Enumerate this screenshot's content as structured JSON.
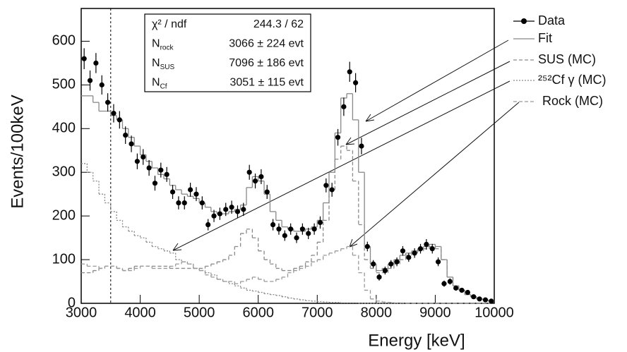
{
  "chart_data": {
    "type": "histogram",
    "x_label": "Energy [keV]",
    "y_label": "Events/100keV",
    "xlim": [
      3000,
      10000
    ],
    "ylim": [
      0,
      675
    ],
    "xticks": [
      3000,
      4000,
      5000,
      6000,
      7000,
      8000,
      9000,
      10000
    ],
    "yticks": [
      0,
      100,
      200,
      300,
      400,
      500,
      600
    ],
    "threshold": 3500,
    "bins": [
      3000,
      3100,
      3200,
      3300,
      3400,
      3500,
      3600,
      3700,
      3800,
      3900,
      4000,
      4100,
      4200,
      4300,
      4400,
      4500,
      4600,
      4700,
      4800,
      4900,
      5000,
      5100,
      5200,
      5300,
      5400,
      5500,
      5600,
      5700,
      5800,
      5900,
      6000,
      6100,
      6200,
      6300,
      6400,
      6500,
      6600,
      6700,
      6800,
      6900,
      7000,
      7100,
      7200,
      7300,
      7400,
      7500,
      7600,
      7700,
      7800,
      7900,
      8000,
      8100,
      8200,
      8300,
      8400,
      8500,
      8600,
      8700,
      8800,
      8900,
      9000,
      9100,
      9200,
      9300,
      9400,
      9500,
      9600,
      9700,
      9800,
      9900,
      10000
    ],
    "stats": [
      {
        "label": "χ² / ndf",
        "value": "244.3 / 62"
      },
      {
        "label": "N",
        "sub": "rock",
        "value": "3066 ± 224 evt"
      },
      {
        "label": "N",
        "sub": "SUS",
        "value": "7096 ± 186 evt"
      },
      {
        "label": "N",
        "sub": "Cf",
        "value": "3051 ± 115 evt"
      }
    ],
    "series": [
      {
        "name": "Data",
        "style": "points",
        "color": "#000000",
        "values": [
          560,
          510,
          550,
          500,
          460,
          435,
          420,
          385,
          365,
          325,
          335,
          310,
          275,
          305,
          295,
          255,
          230,
          230,
          260,
          250,
          230,
          180,
          200,
          205,
          215,
          220,
          210,
          215,
          300,
          280,
          290,
          255,
          180,
          170,
          155,
          170,
          150,
          170,
          160,
          170,
          185,
          270,
          260,
          380,
          450,
          530,
          505,
          360,
          130,
          90,
          60,
          75,
          90,
          95,
          120,
          105,
          115,
          125,
          135,
          125,
          95,
          45,
          50,
          35,
          30,
          25,
          15,
          10,
          8,
          5
        ],
        "errors": [
          24,
          23,
          23,
          22,
          21,
          21,
          20,
          20,
          19,
          18,
          18,
          18,
          17,
          17,
          17,
          16,
          15,
          15,
          16,
          16,
          15,
          13,
          14,
          14,
          15,
          15,
          14,
          15,
          17,
          17,
          17,
          16,
          13,
          13,
          12,
          13,
          12,
          13,
          13,
          13,
          14,
          16,
          16,
          19,
          21,
          23,
          22,
          19,
          11,
          9,
          8,
          9,
          9,
          10,
          11,
          10,
          11,
          11,
          12,
          11,
          10,
          7,
          7,
          6,
          5,
          5,
          4,
          3,
          3,
          2
        ]
      },
      {
        "name": "Fit",
        "style": "solid",
        "color": "#888888",
        "values": [
          475,
          475,
          460,
          440,
          440,
          430,
          420,
          400,
          380,
          360,
          340,
          325,
          310,
          295,
          285,
          270,
          260,
          250,
          245,
          240,
          230,
          220,
          210,
          205,
          205,
          210,
          215,
          225,
          265,
          290,
          280,
          250,
          210,
          190,
          175,
          170,
          165,
          165,
          170,
          175,
          190,
          230,
          300,
          390,
          470,
          480,
          420,
          300,
          130,
          90,
          75,
          80,
          90,
          100,
          110,
          115,
          120,
          125,
          130,
          135,
          130,
          100,
          60,
          40,
          30,
          20,
          15,
          10,
          8,
          5
        ]
      },
      {
        "name": "SUS (MC)",
        "style": "dashed",
        "color": "#8a8a8a",
        "values": [
          70,
          70,
          75,
          80,
          85,
          85,
          80,
          75,
          80,
          85,
          85,
          85,
          85,
          85,
          85,
          80,
          80,
          80,
          80,
          80,
          80,
          85,
          90,
          95,
          100,
          110,
          130,
          160,
          170,
          150,
          120,
          100,
          90,
          80,
          75,
          75,
          80,
          85,
          95,
          110,
          140,
          190,
          260,
          330,
          360,
          350,
          280,
          180,
          100,
          80,
          70,
          70,
          80,
          90,
          100,
          110,
          115,
          120,
          125,
          130,
          125,
          100,
          60,
          40,
          30,
          20,
          15,
          10,
          8,
          5
        ]
      },
      {
        "name": "²⁵²Cf γ (MC)",
        "style": "dotted",
        "color": "#8a8a8a",
        "values": [
          320,
          300,
          280,
          250,
          230,
          210,
          190,
          175,
          165,
          155,
          150,
          140,
          130,
          125,
          120,
          115,
          100,
          95,
          90,
          80,
          75,
          70,
          65,
          55,
          50,
          45,
          40,
          35,
          30,
          28,
          25,
          22,
          20,
          18,
          15,
          12,
          10,
          8,
          6,
          5,
          4,
          3,
          2,
          2,
          1,
          1,
          1,
          0,
          0,
          0,
          0,
          0,
          0,
          0,
          0,
          0,
          0,
          0,
          0,
          0,
          0,
          0,
          0,
          0,
          0,
          0,
          0,
          0,
          0,
          0
        ]
      },
      {
        "name": "Rock (MC)",
        "style": "dashed",
        "color": "#999999",
        "values": [
          90,
          85,
          85,
          80,
          85,
          85,
          80,
          75,
          75,
          80,
          85,
          85,
          80,
          80,
          80,
          85,
          90,
          95,
          90,
          80,
          75,
          65,
          60,
          55,
          50,
          50,
          45,
          50,
          55,
          60,
          55,
          50,
          50,
          55,
          60,
          70,
          75,
          80,
          85,
          95,
          100,
          110,
          115,
          120,
          125,
          130,
          110,
          70,
          30,
          10,
          5,
          3,
          2,
          1,
          1,
          0,
          0,
          0,
          0,
          0,
          0,
          0,
          0,
          0,
          0,
          0,
          0,
          0,
          0,
          0
        ]
      }
    ]
  }
}
